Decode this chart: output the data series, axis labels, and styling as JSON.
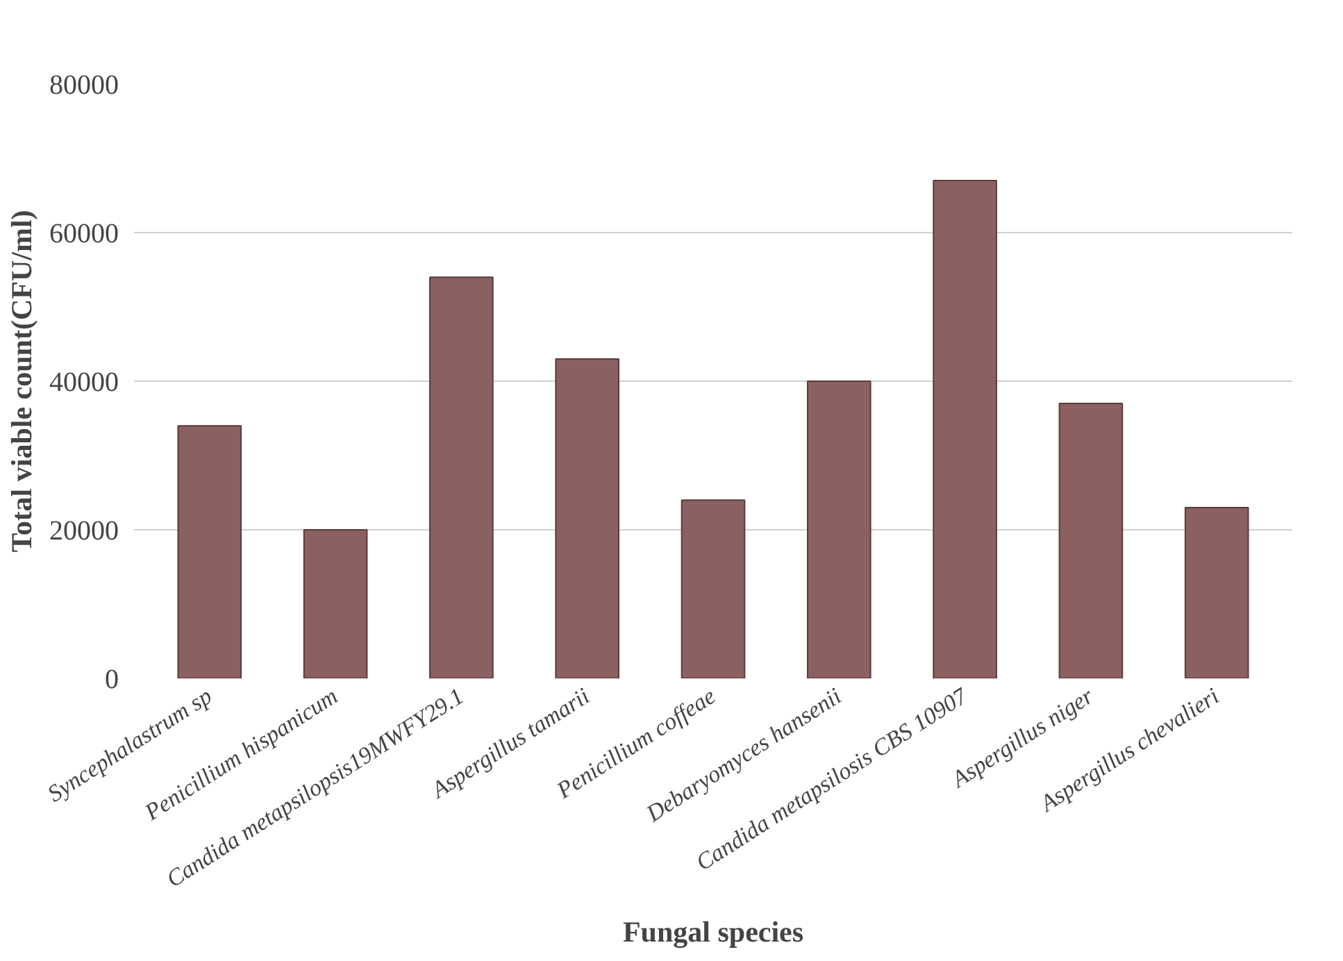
{
  "chart_data": {
    "type": "bar",
    "xlabel": "Fungal species",
    "ylabel": "Total viable count(CFU/ml)",
    "categories": [
      "Syncephalastrum sp",
      "Penicillium hispanicum",
      "Candida metapsilopsis19MWFY29.1",
      "Aspergillus tamarii",
      "Penicillium coffeae",
      "Debaryomyces hansenii",
      "Candida metapsilosis CBS 10907",
      "Aspergillus niger",
      "Aspergillus chevalieri"
    ],
    "values": [
      34000,
      20000,
      54000,
      43000,
      24000,
      40000,
      67000,
      37000,
      23000
    ],
    "color": "#8b6060",
    "ylim": [
      0,
      80000
    ],
    "yticks": [
      0,
      20000,
      40000,
      60000,
      80000
    ],
    "grid": "y"
  }
}
